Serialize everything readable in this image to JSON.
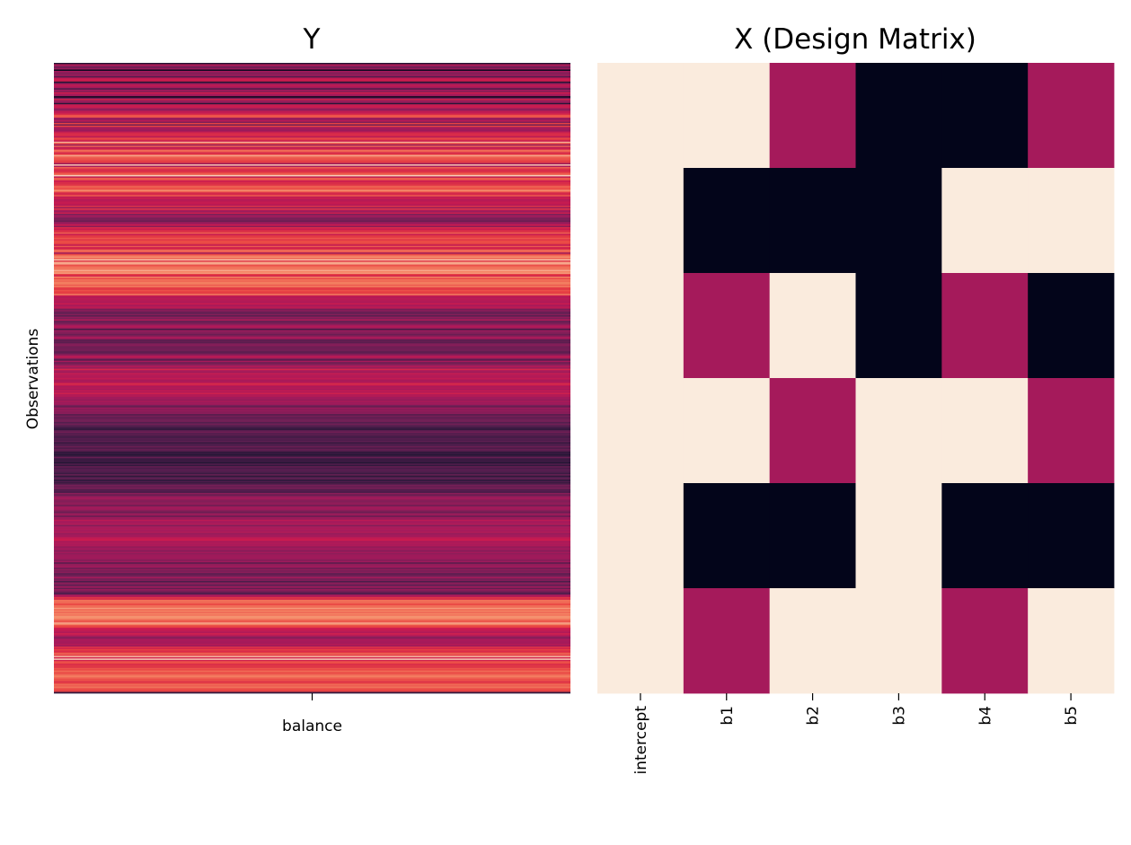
{
  "chart_data": [
    {
      "type": "heatmap",
      "title": "Y",
      "xlabel": "",
      "ylabel": "Observations",
      "x_tick_labels": [
        "balance"
      ],
      "colormap": "rocket",
      "value_range": [
        0,
        1
      ],
      "colorbar": false,
      "values": [
        0.13,
        0.55,
        0.43,
        0.35,
        0.47,
        0.02,
        0.5,
        0.41,
        0.43,
        0.47,
        0.26,
        0.58,
        0.62,
        0.63,
        0.12,
        0.42,
        0.58,
        0.55,
        0.5,
        0.25,
        0.5,
        0.41,
        0.63,
        0.52,
        0.48,
        0.02,
        0.36,
        0.64,
        0.44,
        0.49,
        0.13,
        0.58,
        0.62,
        0.6,
        0.44,
        0.45,
        0.59,
        0.59,
        0.68,
        0.78,
        0.78,
        0.48,
        0.46,
        0.57,
        0.39,
        0.75,
        0.35,
        0.75,
        0.48,
        0.51,
        0.46,
        0.54,
        0.66,
        0.68,
        0.67,
        0.56,
        0.76,
        0.71,
        0.6,
        0.92,
        0.76,
        0.46,
        0.81,
        0.57,
        0.64,
        0.82,
        0.8,
        0.65,
        0.74,
        0.91,
        0.81,
        0.78,
        0.77,
        0.73,
        0.73,
        0.47,
        0.95,
        0.51,
        0.8,
        0.7,
        0.67,
        0.69,
        0.76,
        0.81,
        0.96,
        0.58,
        0.79,
        0.78,
        0.61,
        0.68,
        0.68,
        0.71,
        0.8,
        0.79,
        0.76,
        0.88,
        0.8,
        0.66,
        0.67,
        0.79,
        0.58,
        0.63,
        0.54,
        0.57,
        0.6,
        0.6,
        0.54,
        0.7,
        0.46,
        0.71,
        0.52,
        0.47,
        0.63,
        0.38,
        0.5,
        0.46,
        0.38,
        0.39,
        0.34,
        0.44,
        0.5,
        0.62,
        0.42,
        0.68,
        0.61,
        0.67,
        0.7,
        0.8,
        0.61,
        0.71,
        0.73,
        0.78,
        0.71,
        0.76,
        0.77,
        0.73,
        0.59,
        0.79,
        0.62,
        0.69,
        0.83,
        0.79,
        0.48,
        0.76,
        0.83,
        0.88,
        0.8,
        0.94,
        0.71,
        0.91,
        0.91,
        0.77,
        0.8,
        0.84,
        0.83,
        0.91,
        0.86,
        0.89,
        0.74,
        0.64,
        0.86,
        0.76,
        0.83,
        0.81,
        0.85,
        0.85,
        0.79,
        0.85,
        0.73,
        0.71,
        0.77,
        0.74,
        0.73,
        0.85,
        0.62,
        0.53,
        0.57,
        0.56,
        0.54,
        0.53,
        0.62,
        0.5,
        0.55,
        0.58,
        0.37,
        0.43,
        0.35,
        0.31,
        0.41,
        0.28,
        0.45,
        0.38,
        0.54,
        0.32,
        0.36,
        0.39,
        0.5,
        0.54,
        0.49,
        0.23,
        0.45,
        0.43,
        0.4,
        0.34,
        0.41,
        0.52,
        0.48,
        0.29,
        0.32,
        0.29,
        0.4,
        0.42,
        0.36,
        0.35,
        0.37,
        0.36,
        0.29,
        0.33,
        0.42,
        0.53,
        0.58,
        0.4,
        0.27,
        0.51,
        0.35,
        0.39,
        0.46,
        0.55,
        0.45,
        0.66,
        0.53,
        0.48,
        0.58,
        0.57,
        0.54,
        0.55,
        0.59,
        0.52,
        0.51,
        0.58,
        0.68,
        0.59,
        0.52,
        0.55,
        0.51,
        0.59,
        0.53,
        0.64,
        0.54,
        0.55,
        0.49,
        0.49,
        0.45,
        0.52,
        0.47,
        0.5,
        0.38,
        0.32,
        0.47,
        0.42,
        0.45,
        0.42,
        0.43,
        0.27,
        0.37,
        0.31,
        0.33,
        0.36,
        0.36,
        0.26,
        0.36,
        0.29,
        0.25,
        0.2,
        0.17,
        0.3,
        0.35,
        0.28,
        0.29,
        0.24,
        0.23,
        0.28,
        0.25,
        0.3,
        0.19,
        0.25,
        0.26,
        0.34,
        0.24,
        0.32,
        0.29,
        0.16,
        0.19,
        0.13,
        0.2,
        0.33,
        0.2,
        0.19,
        0.21,
        0.12,
        0.27,
        0.17,
        0.32,
        0.24,
        0.28,
        0.28,
        0.25,
        0.2,
        0.32,
        0.16,
        0.25,
        0.31,
        0.14,
        0.25,
        0.19,
        0.29,
        0.37,
        0.32,
        0.39,
        0.27,
        0.27,
        0.24,
        0.43,
        0.33,
        0.41,
        0.49,
        0.48,
        0.42,
        0.41,
        0.44,
        0.45,
        0.34,
        0.48,
        0.49,
        0.47,
        0.41,
        0.34,
        0.44,
        0.48,
        0.32,
        0.48,
        0.46,
        0.57,
        0.5,
        0.51,
        0.53,
        0.41,
        0.5,
        0.52,
        0.52,
        0.5,
        0.54,
        0.46,
        0.49,
        0.5,
        0.56,
        0.61,
        0.62,
        0.5,
        0.54,
        0.52,
        0.53,
        0.45,
        0.49,
        0.49,
        0.41,
        0.5,
        0.44,
        0.48,
        0.48,
        0.49,
        0.47,
        0.41,
        0.49,
        0.28,
        0.45,
        0.46,
        0.49,
        0.34,
        0.44,
        0.38,
        0.43,
        0.3,
        0.33,
        0.38,
        0.51,
        0.35,
        0.4,
        0.23,
        0.44,
        0.37,
        0.33,
        0.5,
        0.32,
        0.46,
        0.39,
        0.33,
        0.25,
        0.49,
        0.55,
        0.71,
        0.67,
        0.83,
        0.82,
        0.81,
        0.75,
        0.82,
        0.82,
        0.89,
        0.81,
        0.86,
        0.81,
        0.86,
        0.83,
        0.88,
        0.88,
        0.85,
        0.8,
        0.78,
        0.91,
        0.86,
        0.76,
        0.74,
        0.62,
        0.61,
        0.57,
        0.54,
        0.63,
        0.57,
        0.49,
        0.4,
        0.5,
        0.52,
        0.5,
        0.5,
        0.55,
        0.48,
        0.7,
        0.65,
        0.74,
        0.67,
        0.72,
        0.82,
        0.72,
        0.94,
        0.64,
        0.96,
        0.64,
        0.78,
        0.76,
        0.67,
        0.72,
        0.7,
        0.78,
        0.76,
        0.82,
        0.77,
        0.78,
        0.83,
        0.85,
        0.81,
        0.77,
        0.77,
        0.69,
        0.74,
        0.82,
        0.79,
        0.83,
        0.78,
        0.75,
        0.74,
        0.17
      ]
    },
    {
      "type": "heatmap",
      "title": "X (Design Matrix)",
      "xlabel": "",
      "ylabel": "",
      "x_tick_labels": [
        "intercept",
        "b1",
        "b2",
        "b3",
        "b4",
        "b5"
      ],
      "colormap": "rocket",
      "value_range": [
        -1,
        1
      ],
      "colorbar": false,
      "values": [
        [
          1,
          1,
          0,
          -1,
          -1,
          0
        ],
        [
          1,
          -1,
          -1,
          -1,
          1,
          1
        ],
        [
          1,
          0,
          1,
          -1,
          0,
          -1
        ],
        [
          1,
          1,
          0,
          1,
          1,
          0
        ],
        [
          1,
          -1,
          -1,
          1,
          -1,
          -1
        ],
        [
          1,
          0,
          1,
          1,
          0,
          1
        ]
      ]
    }
  ]
}
